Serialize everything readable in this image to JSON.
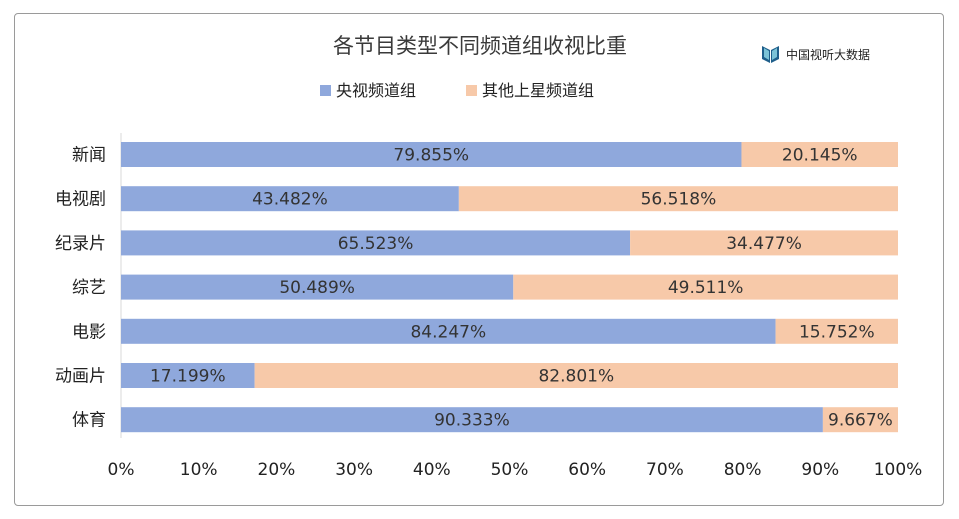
{
  "logo": {
    "text": "中国视听大数据",
    "icon": "book-logo-icon"
  },
  "chart_data": {
    "type": "bar",
    "orientation": "horizontal",
    "stacked": true,
    "title": "各节目类型不同频道组收视比重",
    "categories": [
      "新闻",
      "电视剧",
      "纪录片",
      "综艺",
      "电影",
      "动画片",
      "体育"
    ],
    "series": [
      {
        "name": "央视频道组",
        "color": "#8fa8dc",
        "values": [
          79.855,
          43.482,
          65.523,
          50.489,
          84.247,
          17.199,
          90.333
        ],
        "labels": [
          "79.855%",
          "43.482%",
          "65.523%",
          "50.489%",
          "84.247%",
          "17.199%",
          "90.333%"
        ]
      },
      {
        "name": "其他上星频道组",
        "color": "#f7c9a9",
        "values": [
          20.145,
          56.518,
          34.477,
          49.511,
          15.752,
          82.801,
          9.667
        ],
        "labels": [
          "20.145%",
          "56.518%",
          "34.477%",
          "49.511%",
          "15.752%",
          "82.801%",
          "9.667%"
        ]
      }
    ],
    "xlim": [
      0,
      100
    ],
    "xticks": [
      "0%",
      "10%",
      "20%",
      "30%",
      "40%",
      "50%",
      "60%",
      "70%",
      "80%",
      "90%",
      "100%"
    ],
    "legend_position": "top",
    "grid": false
  }
}
